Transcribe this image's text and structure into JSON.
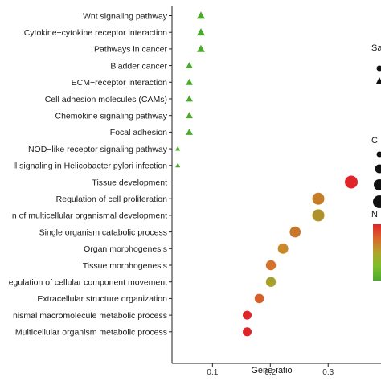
{
  "chart_data": {
    "type": "scatter",
    "title": "",
    "xlabel": "Gene ratio",
    "ylabel": "",
    "xlim": [
      0.03,
      0.365
    ],
    "xticks": [
      {
        "value": 0.1,
        "label": "0.1"
      },
      {
        "value": 0.2,
        "label": "0.2"
      },
      {
        "value": 0.3,
        "label": "0.3"
      }
    ],
    "grid": false,
    "legend": {
      "placement": "right",
      "shape_title": "Sa",
      "size_title": "C",
      "color_title": "N",
      "colors": [
        "#e0242a",
        "#d9672a",
        "#b0a42c",
        "#7cbe2c",
        "#4ca92c"
      ]
    },
    "points": [
      {
        "label": "Wnt signaling pathway",
        "x": 0.08,
        "shape": "triangle",
        "size": 2,
        "color": "#4ca92c"
      },
      {
        "label": "Cytokine−cytokine receptor interaction",
        "x": 0.08,
        "shape": "triangle",
        "size": 2,
        "color": "#4ca92c"
      },
      {
        "label": "Pathways in cancer",
        "x": 0.08,
        "shape": "triangle",
        "size": 2,
        "color": "#4ca92c"
      },
      {
        "label": "Bladder cancer",
        "x": 0.06,
        "shape": "triangle",
        "size": 1.6,
        "color": "#4ca92c"
      },
      {
        "label": "ECM−receptor interaction",
        "x": 0.06,
        "shape": "triangle",
        "size": 1.6,
        "color": "#4ca92c"
      },
      {
        "label": "Cell adhesion molecules (CAMs)",
        "x": 0.06,
        "shape": "triangle",
        "size": 1.6,
        "color": "#4ca92c"
      },
      {
        "label": "Chemokine signaling pathway",
        "x": 0.06,
        "shape": "triangle",
        "size": 1.6,
        "color": "#4ca92c"
      },
      {
        "label": "Focal adhesion",
        "x": 0.06,
        "shape": "triangle",
        "size": 1.6,
        "color": "#4ca92c"
      },
      {
        "label": "NOD−like receptor signaling pathway",
        "x": 0.04,
        "shape": "triangle",
        "size": 0.8,
        "color": "#4ca92c"
      },
      {
        "label": "ll signaling in Helicobacter pylori infection",
        "x": 0.04,
        "shape": "triangle",
        "size": 0.8,
        "color": "#4ca92c"
      },
      {
        "label": "Tissue development",
        "x": 0.34,
        "shape": "circle",
        "size": 8,
        "color": "#e0242a"
      },
      {
        "label": "Regulation of cell proliferation",
        "x": 0.283,
        "shape": "circle",
        "size": 7.5,
        "color": "#c47e2a"
      },
      {
        "label": "n of multicellular organismal development",
        "x": 0.283,
        "shape": "circle",
        "size": 7.5,
        "color": "#b0922c"
      },
      {
        "label": "Single organism catabolic process",
        "x": 0.243,
        "shape": "circle",
        "size": 6.8,
        "color": "#c7772a"
      },
      {
        "label": "Organ morphogenesis",
        "x": 0.222,
        "shape": "circle",
        "size": 6.5,
        "color": "#c98a2b"
      },
      {
        "label": "Tissue morphogenesis",
        "x": 0.201,
        "shape": "circle",
        "size": 6.2,
        "color": "#d4712a"
      },
      {
        "label": "egulation of cellular component movement",
        "x": 0.201,
        "shape": "circle",
        "size": 6.2,
        "color": "#a8a02c"
      },
      {
        "label": "Extracellular structure organization",
        "x": 0.181,
        "shape": "circle",
        "size": 5.8,
        "color": "#d6602a"
      },
      {
        "label": "nismal macromolecule metabolic process",
        "x": 0.16,
        "shape": "circle",
        "size": 5.5,
        "color": "#e0242a"
      },
      {
        "label": "Multicellular organism metabolic process",
        "x": 0.16,
        "shape": "circle",
        "size": 5.5,
        "color": "#e0242a"
      }
    ]
  }
}
